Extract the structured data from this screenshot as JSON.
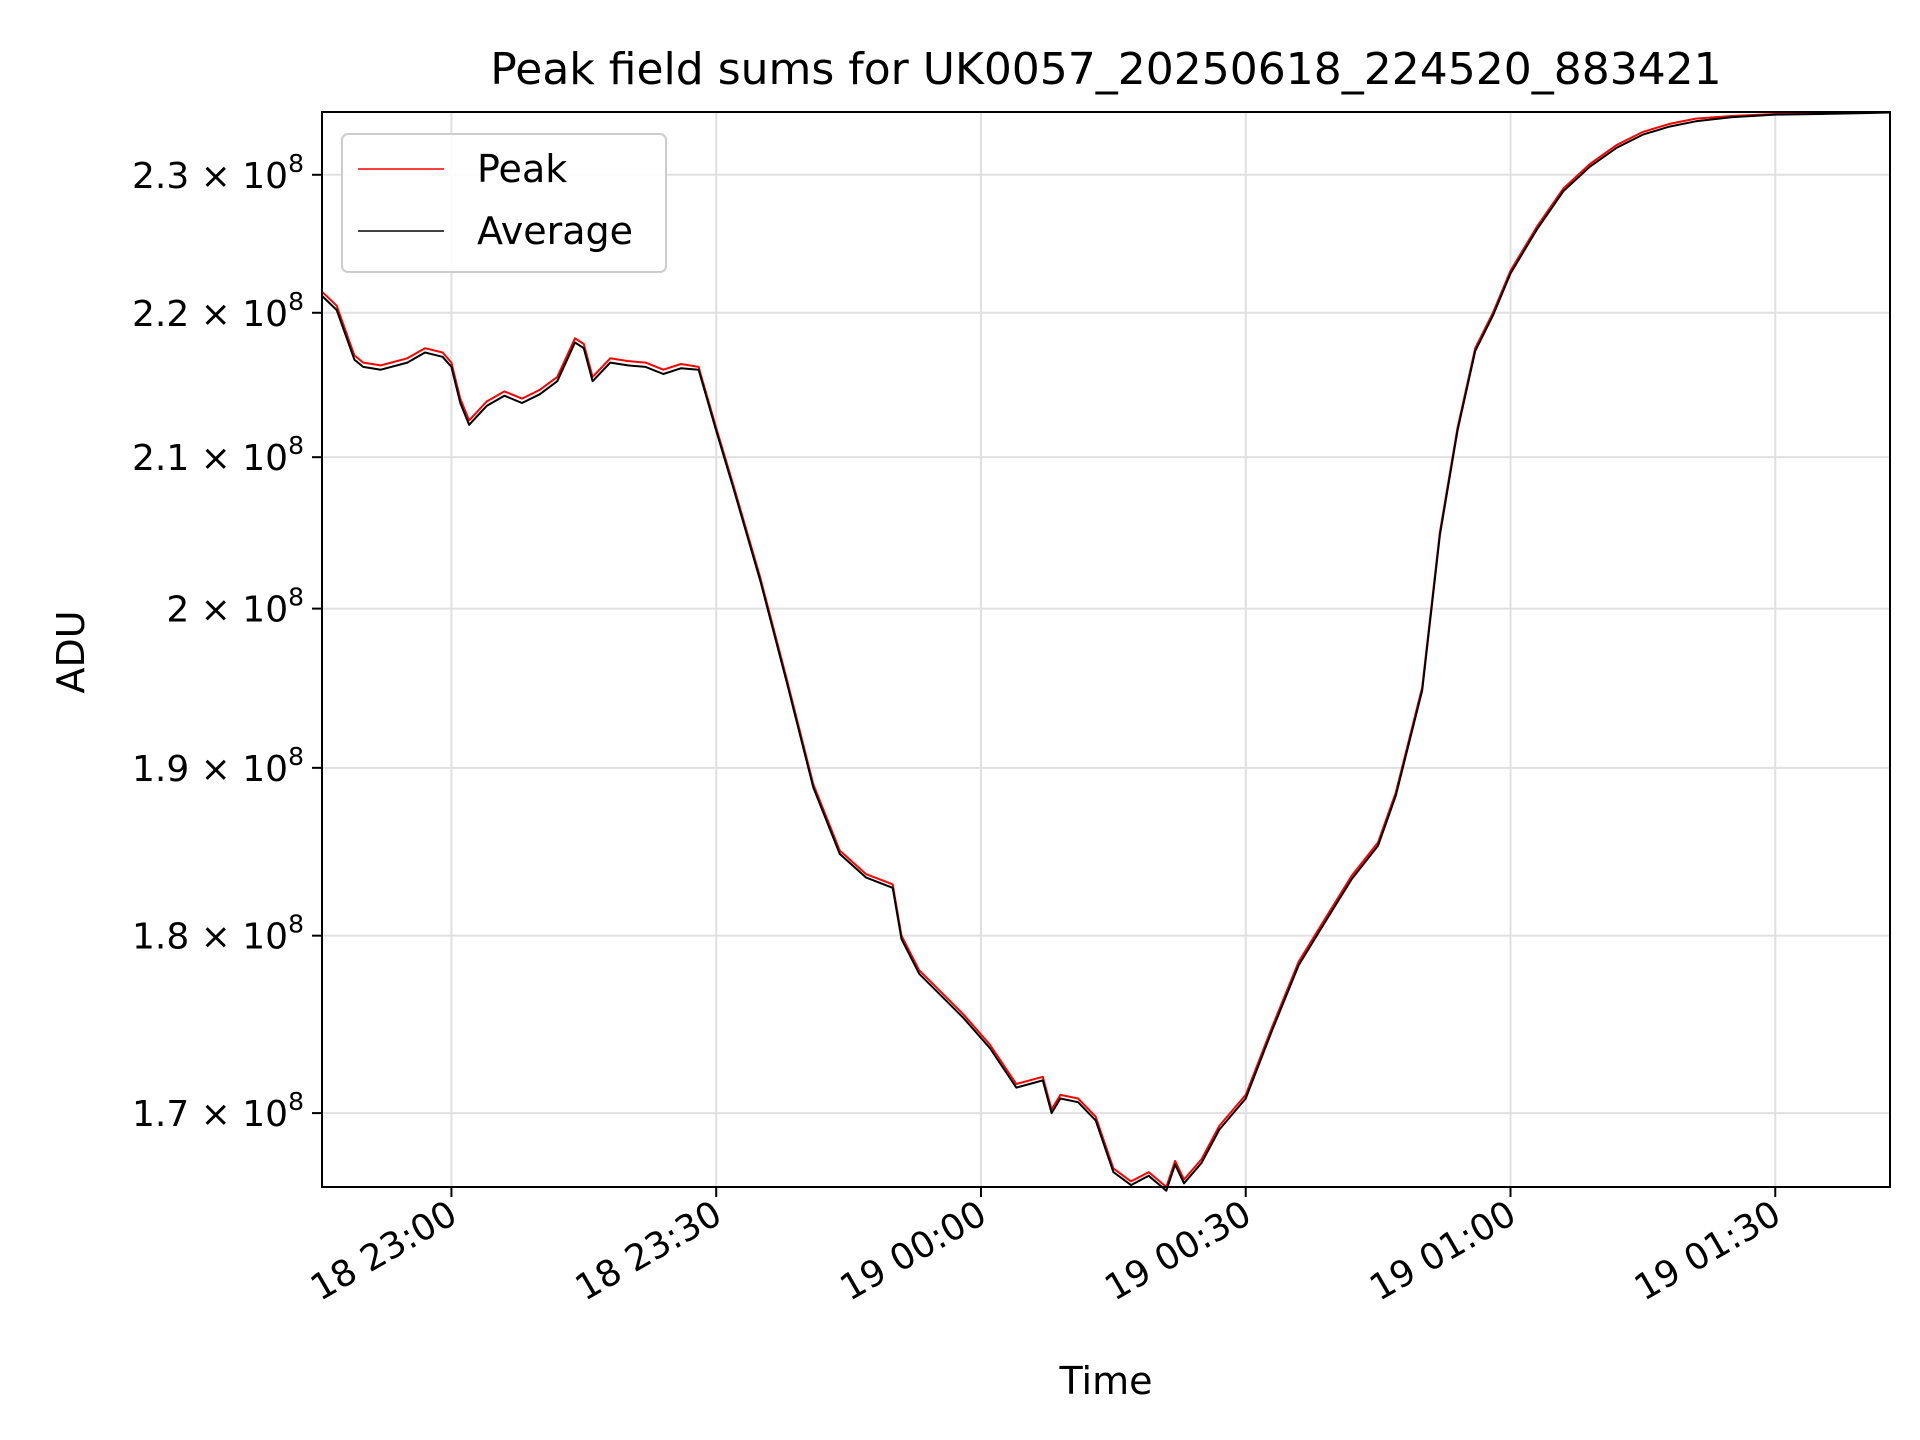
{
  "chart_data": {
    "type": "line",
    "title": "Peak field sums for UK0057_20250618_224520_883421",
    "xlabel": "Time",
    "ylabel": "ADU",
    "y_scale": "log",
    "xlim": [
      "2025-06-18 22:45:20",
      "2025-06-19 01:43:00"
    ],
    "ylim": [
      166000000,
      234700000
    ],
    "grid": true,
    "legend": "top-left",
    "x_ticks": [
      {
        "value": "2025-06-18 23:00",
        "label": "18 23:00"
      },
      {
        "value": "2025-06-18 23:30",
        "label": "18 23:30"
      },
      {
        "value": "2025-06-19 00:00",
        "label": "19 00:00"
      },
      {
        "value": "2025-06-19 00:30",
        "label": "19 00:30"
      },
      {
        "value": "2025-06-19 01:00",
        "label": "19 01:00"
      },
      {
        "value": "2025-06-19 01:30",
        "label": "19 01:30"
      }
    ],
    "y_ticks": [
      {
        "value": 170000000,
        "mantissa": "1.7",
        "exp": "8"
      },
      {
        "value": 180000000,
        "mantissa": "1.8",
        "exp": "8"
      },
      {
        "value": 190000000,
        "mantissa": "1.9",
        "exp": "8"
      },
      {
        "value": 200000000,
        "mantissa": "2",
        "exp": "8"
      },
      {
        "value": 210000000,
        "mantissa": "2.1",
        "exp": "8"
      },
      {
        "value": 220000000,
        "mantissa": "2.2",
        "exp": "8"
      },
      {
        "value": 230000000,
        "mantissa": "2.3",
        "exp": "8"
      }
    ],
    "series": [
      {
        "name": "Peak",
        "color": "#ff0000",
        "x": [
          "2025-06-18 22:45:20",
          "2025-06-18 22:47:00",
          "2025-06-18 22:49:00",
          "2025-06-18 22:50:00",
          "2025-06-18 22:52:00",
          "2025-06-18 22:55:00",
          "2025-06-18 22:57:00",
          "2025-06-18 22:59:00",
          "2025-06-18 23:00:00",
          "2025-06-18 23:01:00",
          "2025-06-18 23:02:00",
          "2025-06-18 23:04:00",
          "2025-06-18 23:06:00",
          "2025-06-18 23:08:00",
          "2025-06-18 23:10:00",
          "2025-06-18 23:12:00",
          "2025-06-18 23:14:00",
          "2025-06-18 23:15:00",
          "2025-06-18 23:16:00",
          "2025-06-18 23:18:00",
          "2025-06-18 23:20:00",
          "2025-06-18 23:22:00",
          "2025-06-18 23:24:00",
          "2025-06-18 23:26:00",
          "2025-06-18 23:28:00",
          "2025-06-18 23:30:00",
          "2025-06-18 23:32:00",
          "2025-06-18 23:35:00",
          "2025-06-18 23:38:00",
          "2025-06-18 23:41:00",
          "2025-06-18 23:44:00",
          "2025-06-18 23:47:00",
          "2025-06-18 23:50:00",
          "2025-06-18 23:51:00",
          "2025-06-18 23:53:00",
          "2025-06-18 23:55:00",
          "2025-06-18 23:58:00",
          "2025-06-19 00:01:00",
          "2025-06-19 00:04:00",
          "2025-06-19 00:07:00",
          "2025-06-19 00:08:00",
          "2025-06-19 00:09:00",
          "2025-06-19 00:11:00",
          "2025-06-19 00:13:00",
          "2025-06-19 00:15:00",
          "2025-06-19 00:17:00",
          "2025-06-19 00:19:00",
          "2025-06-19 00:21:00",
          "2025-06-19 00:22:00",
          "2025-06-19 00:23:00",
          "2025-06-19 00:25:00",
          "2025-06-19 00:27:00",
          "2025-06-19 00:30:00",
          "2025-06-19 00:33:00",
          "2025-06-19 00:36:00",
          "2025-06-19 00:39:00",
          "2025-06-19 00:42:00",
          "2025-06-19 00:45:00",
          "2025-06-19 00:47:00",
          "2025-06-19 00:50:00",
          "2025-06-19 00:52:00",
          "2025-06-19 00:54:00",
          "2025-06-19 00:56:00",
          "2025-06-19 00:58:00",
          "2025-06-19 01:00:00",
          "2025-06-19 01:03:00",
          "2025-06-19 01:06:00",
          "2025-06-19 01:09:00",
          "2025-06-19 01:12:00",
          "2025-06-19 01:15:00",
          "2025-06-19 01:18:00",
          "2025-06-19 01:21:00",
          "2025-06-19 01:25:00",
          "2025-06-19 01:30:00",
          "2025-06-19 01:35:00",
          "2025-06-19 01:40:00",
          "2025-06-19 01:43:00"
        ],
        "y": [
          221500000,
          220500000,
          217000000,
          216500000,
          216300000,
          216800000,
          217500000,
          217200000,
          216500000,
          214000000,
          212500000,
          213800000,
          214500000,
          214000000,
          214600000,
          215500000,
          218200000,
          217800000,
          215500000,
          216800000,
          216600000,
          216500000,
          216000000,
          216400000,
          216200000,
          212000000,
          208000000,
          202000000,
          195500000,
          189000000,
          185000000,
          183600000,
          183000000,
          180000000,
          178000000,
          177000000,
          175500000,
          173800000,
          171600000,
          172000000,
          170200000,
          171000000,
          170800000,
          169800000,
          167000000,
          166300000,
          166800000,
          166000000,
          167400000,
          166400000,
          167500000,
          169300000,
          171000000,
          174800000,
          178500000,
          181000000,
          183500000,
          185500000,
          188500000,
          195000000,
          205000000,
          212000000,
          217500000,
          220000000,
          223000000,
          226200000,
          229000000,
          230800000,
          232200000,
          233200000,
          233800000,
          234200000,
          234400000,
          234550000,
          234600000,
          234650000,
          234680000
        ]
      },
      {
        "name": "Average",
        "color": "#000000",
        "x": [
          "2025-06-18 22:45:20",
          "2025-06-18 22:47:00",
          "2025-06-18 22:49:00",
          "2025-06-18 22:50:00",
          "2025-06-18 22:52:00",
          "2025-06-18 22:55:00",
          "2025-06-18 22:57:00",
          "2025-06-18 22:59:00",
          "2025-06-18 23:00:00",
          "2025-06-18 23:01:00",
          "2025-06-18 23:02:00",
          "2025-06-18 23:04:00",
          "2025-06-18 23:06:00",
          "2025-06-18 23:08:00",
          "2025-06-18 23:10:00",
          "2025-06-18 23:12:00",
          "2025-06-18 23:14:00",
          "2025-06-18 23:15:00",
          "2025-06-18 23:16:00",
          "2025-06-18 23:18:00",
          "2025-06-18 23:20:00",
          "2025-06-18 23:22:00",
          "2025-06-18 23:24:00",
          "2025-06-18 23:26:00",
          "2025-06-18 23:28:00",
          "2025-06-18 23:30:00",
          "2025-06-18 23:32:00",
          "2025-06-18 23:35:00",
          "2025-06-18 23:38:00",
          "2025-06-18 23:41:00",
          "2025-06-18 23:44:00",
          "2025-06-18 23:47:00",
          "2025-06-18 23:50:00",
          "2025-06-18 23:51:00",
          "2025-06-18 23:53:00",
          "2025-06-18 23:55:00",
          "2025-06-18 23:58:00",
          "2025-06-19 00:01:00",
          "2025-06-19 00:04:00",
          "2025-06-19 00:07:00",
          "2025-06-19 00:08:00",
          "2025-06-19 00:09:00",
          "2025-06-19 00:11:00",
          "2025-06-19 00:13:00",
          "2025-06-19 00:15:00",
          "2025-06-19 00:17:00",
          "2025-06-19 00:19:00",
          "2025-06-19 00:21:00",
          "2025-06-19 00:22:00",
          "2025-06-19 00:23:00",
          "2025-06-19 00:25:00",
          "2025-06-19 00:27:00",
          "2025-06-19 00:30:00",
          "2025-06-19 00:33:00",
          "2025-06-19 00:36:00",
          "2025-06-19 00:39:00",
          "2025-06-19 00:42:00",
          "2025-06-19 00:45:00",
          "2025-06-19 00:47:00",
          "2025-06-19 00:50:00",
          "2025-06-19 00:52:00",
          "2025-06-19 00:54:00",
          "2025-06-19 00:56:00",
          "2025-06-19 00:58:00",
          "2025-06-19 01:00:00",
          "2025-06-19 01:03:00",
          "2025-06-19 01:06:00",
          "2025-06-19 01:09:00",
          "2025-06-19 01:12:00",
          "2025-06-19 01:15:00",
          "2025-06-19 01:18:00",
          "2025-06-19 01:21:00",
          "2025-06-19 01:25:00",
          "2025-06-19 01:30:00",
          "2025-06-19 01:35:00",
          "2025-06-19 01:40:00",
          "2025-06-19 01:43:00"
        ],
        "y": [
          221200000,
          220200000,
          216700000,
          216200000,
          216000000,
          216500000,
          217200000,
          216900000,
          216200000,
          213700000,
          212200000,
          213500000,
          214200000,
          213700000,
          214300000,
          215200000,
          217900000,
          217500000,
          215200000,
          216500000,
          216300000,
          216200000,
          215700000,
          216100000,
          216000000,
          211800000,
          207800000,
          201800000,
          195300000,
          188800000,
          184800000,
          183400000,
          182800000,
          179800000,
          177800000,
          176800000,
          175300000,
          173600000,
          171400000,
          171800000,
          170000000,
          170800000,
          170600000,
          169600000,
          166800000,
          166100000,
          166600000,
          165800000,
          167200000,
          166200000,
          167300000,
          169100000,
          170800000,
          174600000,
          178300000,
          180800000,
          183300000,
          185300000,
          188300000,
          194800000,
          204800000,
          211800000,
          217300000,
          219800000,
          222800000,
          226000000,
          228800000,
          230600000,
          232000000,
          233000000,
          233600000,
          234000000,
          234300000,
          234500000,
          234550000,
          234620000,
          234660000
        ]
      }
    ]
  }
}
